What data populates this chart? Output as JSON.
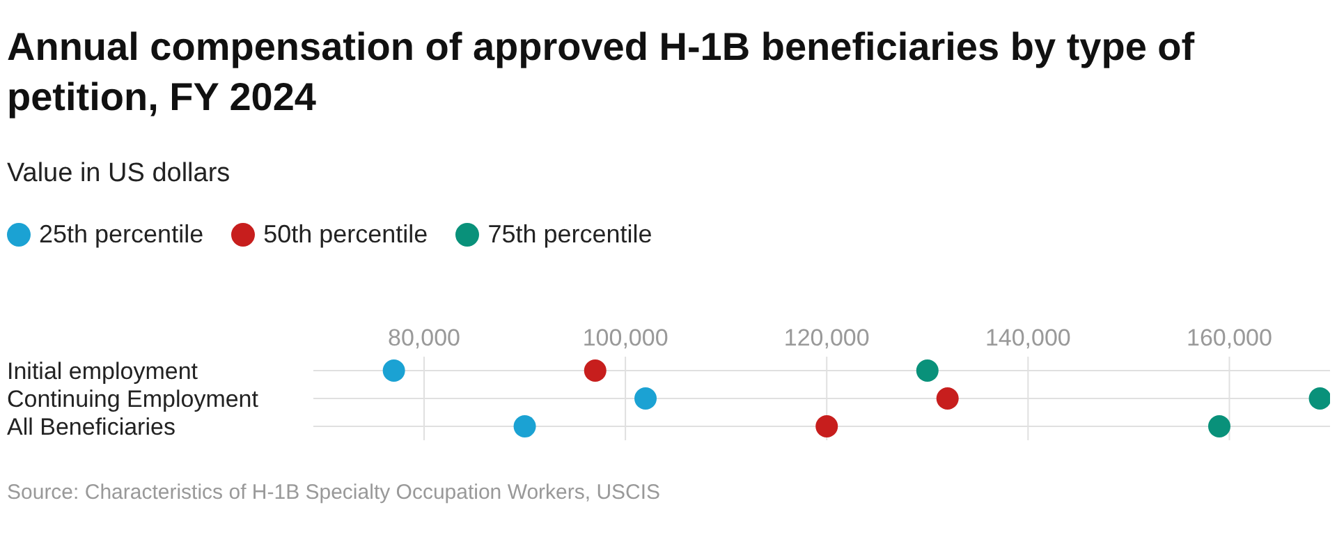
{
  "chart_data": {
    "type": "scatter",
    "title": "Annual compensation of approved H-1B beneficiaries by type of petition, FY 2024",
    "subtitle": "Value in US dollars",
    "categories": [
      "Initial employment",
      "Continuing Employment",
      "All Beneficiaries"
    ],
    "orientation": "horizontal",
    "series": [
      {
        "name": "25th percentile",
        "color": "#1ba2d3",
        "values": [
          77000,
          102000,
          90000
        ]
      },
      {
        "name": "50th percentile",
        "color": "#c71e1d",
        "values": [
          97000,
          132000,
          120000
        ]
      },
      {
        "name": "75th percentile",
        "color": "#09917a",
        "values": [
          130000,
          169000,
          159000
        ]
      }
    ],
    "xlim": [
      69000,
      170000
    ],
    "xticks": [
      {
        "value": 80000,
        "label": "80,000"
      },
      {
        "value": 100000,
        "label": "100,000"
      },
      {
        "value": 120000,
        "label": "120,000"
      },
      {
        "value": 140000,
        "label": "140,000"
      },
      {
        "value": 160000,
        "label": "160,000"
      }
    ],
    "grid": true,
    "legend": "top left",
    "marker": "circle",
    "annotations": [
      "Source: Characteristics of H-1B Specialty Occupation Workers, USCIS"
    ]
  }
}
